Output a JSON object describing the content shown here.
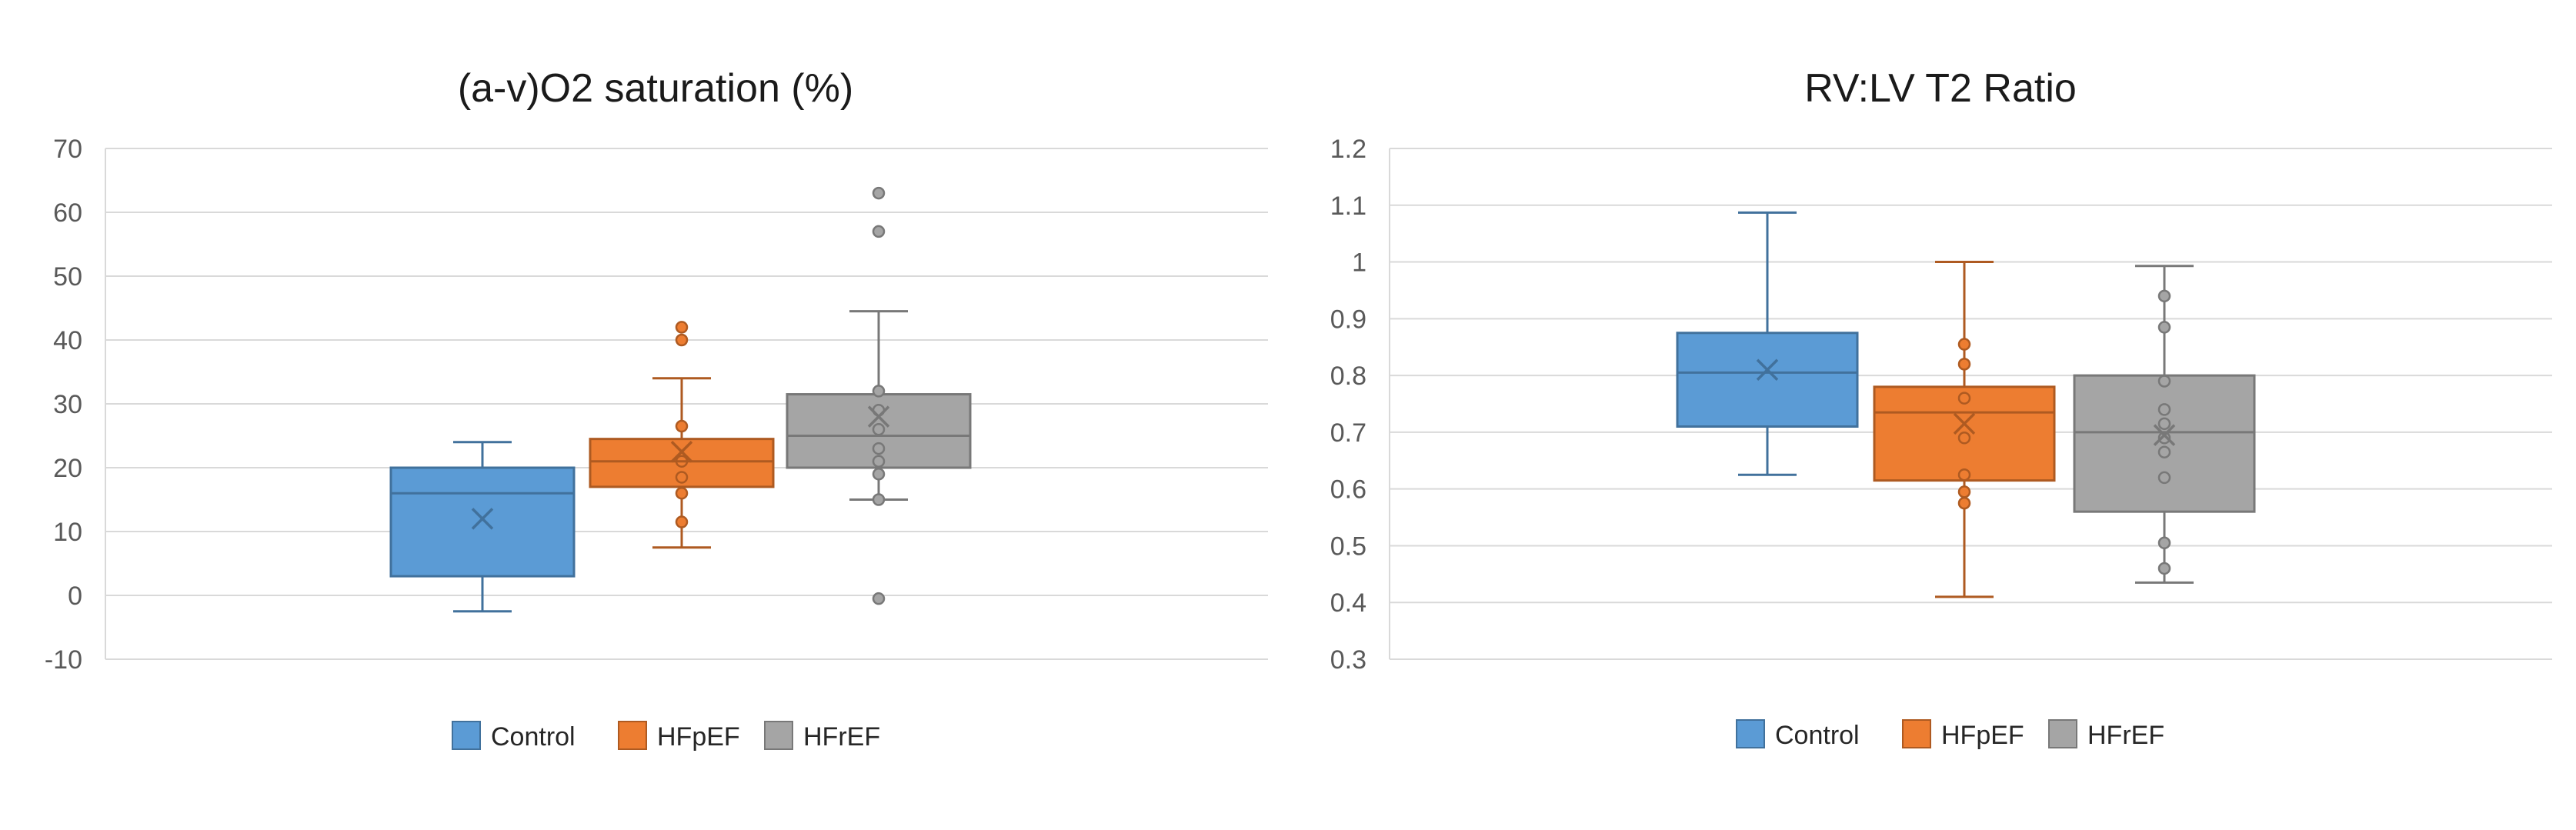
{
  "colors": {
    "Control": "#5b9bd5",
    "HFpEF": "#ed7d31",
    "HFrEF": "#a5a5a5"
  },
  "strokes": {
    "Control": "#41719c",
    "HFpEF": "#ae5a21",
    "HFrEF": "#787878"
  },
  "chart_data": [
    {
      "type": "box",
      "title": "(a-v)O2 saturation (%)",
      "ylim": [
        -10,
        70
      ],
      "yticks": [
        "70",
        "60",
        "50",
        "40",
        "30",
        "20",
        "10",
        "0",
        "-10"
      ],
      "ytick_values": [
        70,
        60,
        50,
        40,
        30,
        20,
        10,
        0,
        -10
      ],
      "grid": true,
      "legend_position": "bottom",
      "series": [
        {
          "name": "Control",
          "min": -2.5,
          "q1": 3,
          "median": 16,
          "q3": 20,
          "max": 24,
          "mean": 12,
          "points": []
        },
        {
          "name": "HFpEF",
          "min": 7.5,
          "q1": 17,
          "median": 21,
          "q3": 24.5,
          "max": 34,
          "mean": 22.5,
          "points": [
            42,
            40,
            26.5,
            21,
            18.5,
            16,
            11.5
          ]
        },
        {
          "name": "HFrEF",
          "min": 15,
          "q1": 20,
          "median": 25,
          "q3": 31.5,
          "max": 44.5,
          "mean": 28,
          "points": [
            63,
            57,
            32,
            29,
            26,
            23,
            21,
            19,
            15,
            -0.5
          ]
        }
      ]
    },
    {
      "type": "box",
      "title": "RV:LV T2 Ratio",
      "ylim": [
        0.3,
        1.2
      ],
      "yticks": [
        "1.2",
        "1.1",
        "1",
        "0.9",
        "0.8",
        "0.7",
        "0.6",
        "0.5",
        "0.4",
        "0.3"
      ],
      "ytick_values": [
        1.2,
        1.1,
        1.0,
        0.9,
        0.8,
        0.7,
        0.6,
        0.5,
        0.4,
        0.3
      ],
      "grid": true,
      "legend_position": "bottom",
      "series": [
        {
          "name": "Control",
          "min": 0.625,
          "q1": 0.71,
          "median": 0.805,
          "q3": 0.875,
          "max": 1.087,
          "mean": 0.81,
          "points": []
        },
        {
          "name": "HFpEF",
          "min": 0.41,
          "q1": 0.615,
          "median": 0.735,
          "q3": 0.78,
          "max": 1.0,
          "mean": 0.715,
          "points": [
            0.855,
            0.82,
            0.76,
            0.69,
            0.625,
            0.595,
            0.575
          ]
        },
        {
          "name": "HFrEF",
          "min": 0.435,
          "q1": 0.56,
          "median": 0.7,
          "q3": 0.8,
          "max": 0.993,
          "mean": 0.695,
          "points": [
            0.94,
            0.885,
            0.79,
            0.74,
            0.715,
            0.69,
            0.665,
            0.62,
            0.505,
            0.46
          ]
        }
      ]
    }
  ]
}
